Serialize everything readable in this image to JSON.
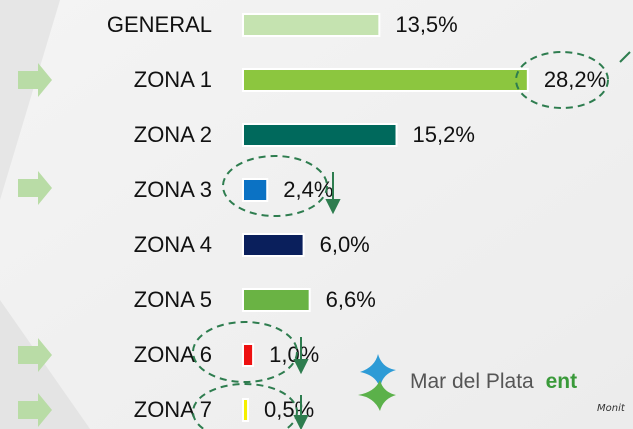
{
  "chart_data": {
    "type": "barh",
    "categories": [
      "GENERAL",
      "ZONA 1",
      "ZONA 2",
      "ZONA 3",
      "ZONA 4",
      "ZONA 5",
      "ZONA 6",
      "ZONA 7"
    ],
    "values": [
      13.5,
      28.2,
      15.2,
      2.4,
      6.0,
      6.6,
      1.0,
      0.5
    ],
    "value_labels": [
      "13,5%",
      "28,2%",
      "15,2%",
      "2,4%",
      "6,0%",
      "6,6%",
      "1,0%",
      "0,5%"
    ],
    "colors": [
      "#c5e3b0",
      "#8cc63f",
      "#00695c",
      "#0b72c4",
      "#0a1f5c",
      "#6ab344",
      "#ee1111",
      "#f5f000"
    ]
  },
  "logo": {
    "text": "Mar del Plata",
    "text_accent": "ent",
    "subtext": "Monit"
  }
}
